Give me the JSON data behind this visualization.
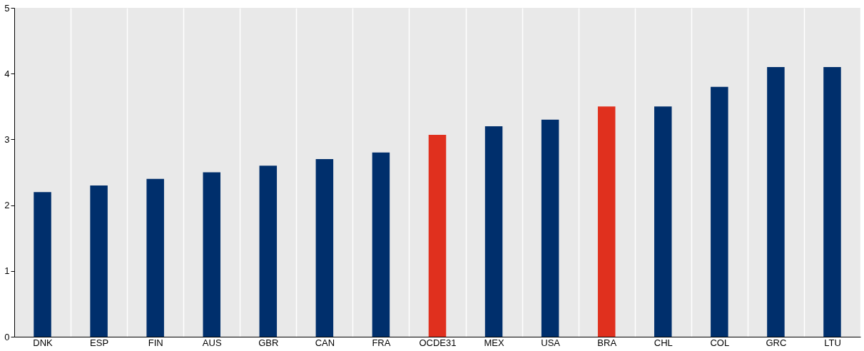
{
  "chart_data": {
    "type": "bar",
    "categories": [
      "DNK",
      "ESP",
      "FIN",
      "AUS",
      "GBR",
      "CAN",
      "FRA",
      "OCDE31",
      "MEX",
      "USA",
      "BRA",
      "CHL",
      "COL",
      "GRC",
      "LTU"
    ],
    "values": [
      2.2,
      2.3,
      2.4,
      2.5,
      2.6,
      2.7,
      2.8,
      3.07,
      3.2,
      3.3,
      3.5,
      3.5,
      3.8,
      4.1,
      4.1
    ],
    "colors": [
      "#002f6c",
      "#002f6c",
      "#002f6c",
      "#002f6c",
      "#002f6c",
      "#002f6c",
      "#002f6c",
      "#e0301e",
      "#002f6c",
      "#002f6c",
      "#e0301e",
      "#002f6c",
      "#002f6c",
      "#002f6c",
      "#002f6c"
    ],
    "ylim": [
      0,
      5
    ],
    "yticks": [
      0,
      1,
      2,
      3,
      4,
      5
    ],
    "grid": "x"
  }
}
